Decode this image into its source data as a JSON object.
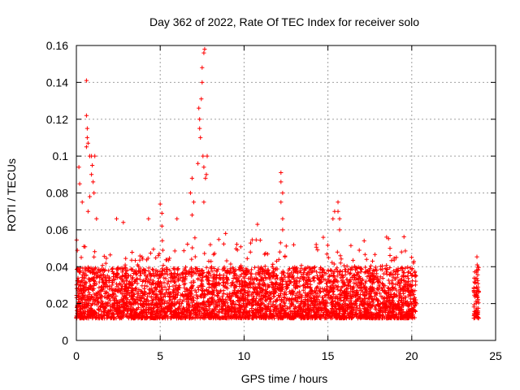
{
  "chart_data": {
    "type": "scatter",
    "title": "Day 362 of 2022, Rate Of TEC Index for receiver solo",
    "xlabel": "GPS time / hours",
    "ylabel": "ROTI / TECUs",
    "xlim": [
      0,
      25
    ],
    "ylim": [
      0,
      0.16
    ],
    "x_ticks": [
      0,
      5,
      10,
      15,
      20,
      25
    ],
    "x_tick_labels": [
      "0",
      "5",
      "10",
      "15",
      "20",
      "25"
    ],
    "y_ticks": [
      0,
      0.02,
      0.04,
      0.06,
      0.08,
      0.1,
      0.12,
      0.14,
      0.16
    ],
    "y_tick_labels": [
      "0",
      "0.02",
      "0.04",
      "0.06",
      "0.08",
      "0.1",
      "0.12",
      "0.14",
      "0.16"
    ],
    "grid": true,
    "marker": "+",
    "marker_color": "#ff0000",
    "coverage_hours": [
      [
        0,
        20.25
      ],
      [
        23.7,
        24.0
      ]
    ],
    "typical_band": [
      0.008,
      0.045
    ],
    "series": [
      {
        "name": "ROTI",
        "notable_points": [
          {
            "x": 0.15,
            "y": 0.094
          },
          {
            "x": 0.2,
            "y": 0.085
          },
          {
            "x": 0.35,
            "y": 0.075
          },
          {
            "x": 0.6,
            "y": 0.141
          },
          {
            "x": 0.6,
            "y": 0.122
          },
          {
            "x": 0.65,
            "y": 0.115
          },
          {
            "x": 0.65,
            "y": 0.11
          },
          {
            "x": 0.7,
            "y": 0.107
          },
          {
            "x": 0.6,
            "y": 0.105
          },
          {
            "x": 0.8,
            "y": 0.1
          },
          {
            "x": 0.9,
            "y": 0.1
          },
          {
            "x": 1.1,
            "y": 0.1
          },
          {
            "x": 0.95,
            "y": 0.095
          },
          {
            "x": 0.9,
            "y": 0.09
          },
          {
            "x": 1.0,
            "y": 0.086
          },
          {
            "x": 1.05,
            "y": 0.08
          },
          {
            "x": 0.8,
            "y": 0.078
          },
          {
            "x": 0.7,
            "y": 0.07
          },
          {
            "x": 1.2,
            "y": 0.066
          },
          {
            "x": 2.4,
            "y": 0.066
          },
          {
            "x": 2.8,
            "y": 0.064
          },
          {
            "x": 4.3,
            "y": 0.066
          },
          {
            "x": 5.0,
            "y": 0.074
          },
          {
            "x": 5.1,
            "y": 0.069
          },
          {
            "x": 5.1,
            "y": 0.062
          },
          {
            "x": 6.0,
            "y": 0.066
          },
          {
            "x": 6.9,
            "y": 0.088
          },
          {
            "x": 6.8,
            "y": 0.08
          },
          {
            "x": 7.0,
            "y": 0.075
          },
          {
            "x": 6.9,
            "y": 0.068
          },
          {
            "x": 7.25,
            "y": 0.096
          },
          {
            "x": 7.3,
            "y": 0.126
          },
          {
            "x": 7.35,
            "y": 0.12
          },
          {
            "x": 7.35,
            "y": 0.115
          },
          {
            "x": 7.4,
            "y": 0.11
          },
          {
            "x": 7.45,
            "y": 0.131
          },
          {
            "x": 7.5,
            "y": 0.14
          },
          {
            "x": 7.5,
            "y": 0.148
          },
          {
            "x": 7.6,
            "y": 0.156
          },
          {
            "x": 7.65,
            "y": 0.158
          },
          {
            "x": 7.55,
            "y": 0.1
          },
          {
            "x": 7.6,
            "y": 0.094
          },
          {
            "x": 7.7,
            "y": 0.088
          },
          {
            "x": 7.75,
            "y": 0.09
          },
          {
            "x": 7.8,
            "y": 0.1
          },
          {
            "x": 7.6,
            "y": 0.075
          },
          {
            "x": 8.9,
            "y": 0.058
          },
          {
            "x": 10.8,
            "y": 0.063
          },
          {
            "x": 12.2,
            "y": 0.091
          },
          {
            "x": 12.2,
            "y": 0.086
          },
          {
            "x": 12.3,
            "y": 0.08
          },
          {
            "x": 12.2,
            "y": 0.075
          },
          {
            "x": 12.3,
            "y": 0.066
          },
          {
            "x": 12.3,
            "y": 0.06
          },
          {
            "x": 14.3,
            "y": 0.052
          },
          {
            "x": 15.3,
            "y": 0.066
          },
          {
            "x": 15.4,
            "y": 0.07
          },
          {
            "x": 15.6,
            "y": 0.075
          },
          {
            "x": 15.6,
            "y": 0.07
          },
          {
            "x": 15.7,
            "y": 0.066
          },
          {
            "x": 15.7,
            "y": 0.06
          },
          {
            "x": 18.5,
            "y": 0.056
          },
          {
            "x": 18.7,
            "y": 0.05
          },
          {
            "x": 20.1,
            "y": 0.042
          },
          {
            "x": 23.9,
            "y": 0.041
          },
          {
            "x": 23.85,
            "y": 0.037
          }
        ]
      }
    ]
  }
}
